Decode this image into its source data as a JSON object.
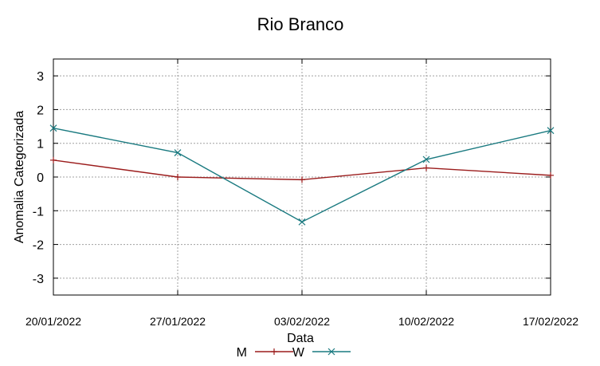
{
  "chart_data": {
    "type": "line",
    "title": "Rio Branco",
    "xlabel": "Data",
    "ylabel": "Anomalia Categorizada",
    "x": [
      "20/01/2022",
      "27/01/2022",
      "03/02/2022",
      "10/02/2022",
      "17/02/2022"
    ],
    "ylim": [
      -3.5,
      3.5
    ],
    "yticks": [
      -3,
      -2,
      -1,
      0,
      1,
      2,
      3
    ],
    "grid": true,
    "legend": "bottom-center",
    "series": [
      {
        "name": "M",
        "color": "#9b1c1c",
        "marker": "plus",
        "values": [
          0.5,
          0.0,
          -0.08,
          0.27,
          0.05
        ]
      },
      {
        "name": "W",
        "color": "#1a7a80",
        "marker": "cross",
        "values": [
          1.45,
          0.72,
          -1.33,
          0.52,
          1.38
        ]
      }
    ]
  }
}
